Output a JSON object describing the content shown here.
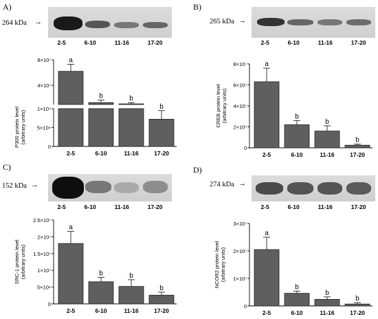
{
  "panels": [
    {
      "label": "A)",
      "kda": "264 kDa",
      "lanes": [
        "2-5",
        "6-10",
        "11-16",
        "17-20"
      ],
      "chart_data": {
        "type": "bar",
        "broken_axis": true,
        "categories": [
          "2-5",
          "6-10",
          "11-16",
          "17-20"
        ],
        "values": [
          62000000,
          13000000,
          11000000,
          72000
        ],
        "errors": [
          11000000,
          4000000,
          2000000,
          23000
        ],
        "sig_letters": [
          "a",
          "b",
          "b",
          "b"
        ],
        "ylabel": "P300 protein level\n(arbitrary units)",
        "y_ticks_upper": [
          "8×10⁷",
          "4×10⁷"
        ],
        "y_ticks_lower": [
          "1×10⁵",
          "5×10⁴",
          "0"
        ]
      }
    },
    {
      "label": "B)",
      "kda": "265 kDa",
      "lanes": [
        "2-5",
        "6-10",
        "11-16",
        "17-20"
      ],
      "chart_data": {
        "type": "bar",
        "categories": [
          "2-5",
          "6-10",
          "11-16",
          "17-20"
        ],
        "values": [
          63000000,
          22000000,
          16000000,
          2500000
        ],
        "errors": [
          13000000,
          4000000,
          5000000,
          1000000
        ],
        "sig_letters": [
          "a",
          "b",
          "b",
          "b"
        ],
        "ylabel": "CREB protein level\n(arbitrary units)",
        "ylim": [
          0,
          80000000
        ],
        "y_ticks": [
          "8×10⁷",
          "6×10⁷",
          "4×10⁷",
          "2×10⁷",
          "0"
        ]
      }
    },
    {
      "label": "C)",
      "kda": "152 kDa",
      "lanes": [
        "2-5",
        "6-10",
        "11-16",
        "17-20"
      ],
      "chart_data": {
        "type": "bar",
        "categories": [
          "2-5",
          "6-10",
          "11-16",
          "17-20"
        ],
        "values": [
          18000000,
          6600000,
          5200000,
          2600000
        ],
        "errors": [
          3600000,
          1300000,
          2000000,
          900000
        ],
        "sig_letters": [
          "a",
          "b",
          "b",
          "b"
        ],
        "ylabel": "SRC-1 protein level\n(arbitrary units)",
        "ylim": [
          0,
          25000000
        ],
        "y_ticks": [
          "2.5×10⁷",
          "2×10⁷",
          "1.5×10⁷",
          "1×10⁷",
          "5×10⁶",
          "0"
        ]
      }
    },
    {
      "label": "D)",
      "kda": "274 kDa",
      "lanes": [
        "2-5",
        "6-10",
        "11-16",
        "17-20"
      ],
      "chart_data": {
        "type": "bar",
        "categories": [
          "2-5",
          "6-10",
          "11-16",
          "17-20"
        ],
        "values": [
          20500000,
          4600000,
          2400000,
          700000
        ],
        "errors": [
          4500000,
          800000,
          900000,
          500000
        ],
        "sig_letters": [
          "a",
          "b",
          "b",
          "b"
        ],
        "ylabel": "NCOR2 protein level\n(arbitrary units)",
        "ylim": [
          0,
          30000000
        ],
        "y_ticks": [
          "3×10⁷",
          "2×10⁷",
          "1×10⁷",
          "0"
        ]
      }
    }
  ]
}
